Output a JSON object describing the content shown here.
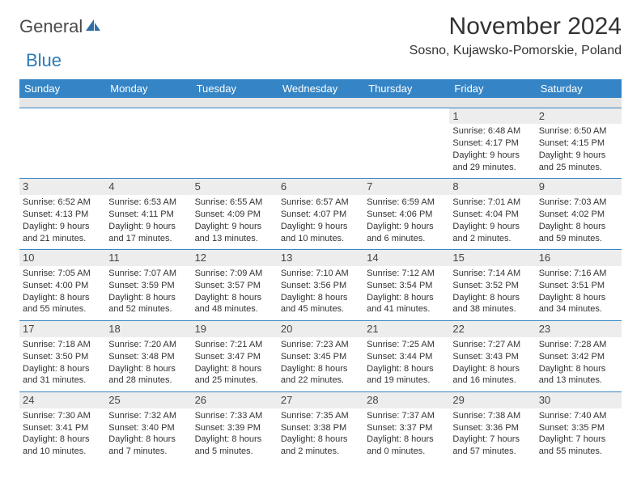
{
  "brand": {
    "word1": "General",
    "word2": "Blue"
  },
  "title": "November 2024",
  "location": "Sosno, Kujawsko-Pomorskie, Poland",
  "colors": {
    "header_bg": "#3585c6",
    "header_text": "#ffffff",
    "daynum_bg": "#ededed",
    "border": "#3585c6",
    "brand_dark": "#4a4a4a",
    "brand_blue": "#2a7ab8"
  },
  "dayNames": [
    "Sunday",
    "Monday",
    "Tuesday",
    "Wednesday",
    "Thursday",
    "Friday",
    "Saturday"
  ],
  "weeks": [
    [
      null,
      null,
      null,
      null,
      null,
      {
        "n": "1",
        "sr": "6:48 AM",
        "ss": "4:17 PM",
        "dl": "9 hours and 29 minutes."
      },
      {
        "n": "2",
        "sr": "6:50 AM",
        "ss": "4:15 PM",
        "dl": "9 hours and 25 minutes."
      }
    ],
    [
      {
        "n": "3",
        "sr": "6:52 AM",
        "ss": "4:13 PM",
        "dl": "9 hours and 21 minutes."
      },
      {
        "n": "4",
        "sr": "6:53 AM",
        "ss": "4:11 PM",
        "dl": "9 hours and 17 minutes."
      },
      {
        "n": "5",
        "sr": "6:55 AM",
        "ss": "4:09 PM",
        "dl": "9 hours and 13 minutes."
      },
      {
        "n": "6",
        "sr": "6:57 AM",
        "ss": "4:07 PM",
        "dl": "9 hours and 10 minutes."
      },
      {
        "n": "7",
        "sr": "6:59 AM",
        "ss": "4:06 PM",
        "dl": "9 hours and 6 minutes."
      },
      {
        "n": "8",
        "sr": "7:01 AM",
        "ss": "4:04 PM",
        "dl": "9 hours and 2 minutes."
      },
      {
        "n": "9",
        "sr": "7:03 AM",
        "ss": "4:02 PM",
        "dl": "8 hours and 59 minutes."
      }
    ],
    [
      {
        "n": "10",
        "sr": "7:05 AM",
        "ss": "4:00 PM",
        "dl": "8 hours and 55 minutes."
      },
      {
        "n": "11",
        "sr": "7:07 AM",
        "ss": "3:59 PM",
        "dl": "8 hours and 52 minutes."
      },
      {
        "n": "12",
        "sr": "7:09 AM",
        "ss": "3:57 PM",
        "dl": "8 hours and 48 minutes."
      },
      {
        "n": "13",
        "sr": "7:10 AM",
        "ss": "3:56 PM",
        "dl": "8 hours and 45 minutes."
      },
      {
        "n": "14",
        "sr": "7:12 AM",
        "ss": "3:54 PM",
        "dl": "8 hours and 41 minutes."
      },
      {
        "n": "15",
        "sr": "7:14 AM",
        "ss": "3:52 PM",
        "dl": "8 hours and 38 minutes."
      },
      {
        "n": "16",
        "sr": "7:16 AM",
        "ss": "3:51 PM",
        "dl": "8 hours and 34 minutes."
      }
    ],
    [
      {
        "n": "17",
        "sr": "7:18 AM",
        "ss": "3:50 PM",
        "dl": "8 hours and 31 minutes."
      },
      {
        "n": "18",
        "sr": "7:20 AM",
        "ss": "3:48 PM",
        "dl": "8 hours and 28 minutes."
      },
      {
        "n": "19",
        "sr": "7:21 AM",
        "ss": "3:47 PM",
        "dl": "8 hours and 25 minutes."
      },
      {
        "n": "20",
        "sr": "7:23 AM",
        "ss": "3:45 PM",
        "dl": "8 hours and 22 minutes."
      },
      {
        "n": "21",
        "sr": "7:25 AM",
        "ss": "3:44 PM",
        "dl": "8 hours and 19 minutes."
      },
      {
        "n": "22",
        "sr": "7:27 AM",
        "ss": "3:43 PM",
        "dl": "8 hours and 16 minutes."
      },
      {
        "n": "23",
        "sr": "7:28 AM",
        "ss": "3:42 PM",
        "dl": "8 hours and 13 minutes."
      }
    ],
    [
      {
        "n": "24",
        "sr": "7:30 AM",
        "ss": "3:41 PM",
        "dl": "8 hours and 10 minutes."
      },
      {
        "n": "25",
        "sr": "7:32 AM",
        "ss": "3:40 PM",
        "dl": "8 hours and 7 minutes."
      },
      {
        "n": "26",
        "sr": "7:33 AM",
        "ss": "3:39 PM",
        "dl": "8 hours and 5 minutes."
      },
      {
        "n": "27",
        "sr": "7:35 AM",
        "ss": "3:38 PM",
        "dl": "8 hours and 2 minutes."
      },
      {
        "n": "28",
        "sr": "7:37 AM",
        "ss": "3:37 PM",
        "dl": "8 hours and 0 minutes."
      },
      {
        "n": "29",
        "sr": "7:38 AM",
        "ss": "3:36 PM",
        "dl": "7 hours and 57 minutes."
      },
      {
        "n": "30",
        "sr": "7:40 AM",
        "ss": "3:35 PM",
        "dl": "7 hours and 55 minutes."
      }
    ]
  ],
  "labels": {
    "sunrise": "Sunrise:",
    "sunset": "Sunset:",
    "daylight": "Daylight:"
  }
}
